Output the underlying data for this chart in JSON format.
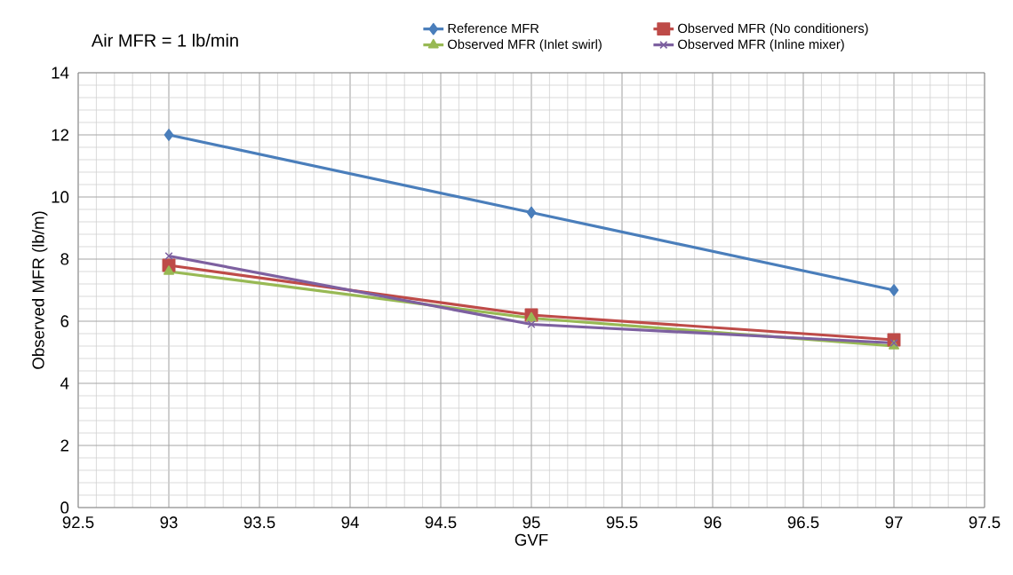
{
  "chart_data": {
    "type": "line",
    "title": "Air MFR = 1 lb/min",
    "xlabel": "GVF",
    "ylabel": "Observed MFR (lb/m)",
    "x": [
      93,
      95,
      97
    ],
    "series": [
      {
        "name": "Reference MFR",
        "color": "#4a7ebb",
        "marker": "diamond",
        "values": [
          12,
          9.5,
          7
        ]
      },
      {
        "name": "Observed MFR (No conditioners)",
        "color": "#be4b48",
        "marker": "square",
        "values": [
          7.8,
          6.2,
          5.4
        ]
      },
      {
        "name": "Observed MFR (Inlet swirl)",
        "color": "#98b954",
        "marker": "triangle",
        "values": [
          7.6,
          6.1,
          5.2
        ]
      },
      {
        "name": "Observed MFR (Inline mixer)",
        "color": "#7d60a0",
        "marker": "cross",
        "values": [
          8.1,
          5.9,
          5.3
        ]
      }
    ],
    "xlim": [
      92.5,
      97.5
    ],
    "xticks": [
      92.5,
      93,
      93.5,
      94,
      94.5,
      95,
      95.5,
      96,
      96.5,
      97,
      97.5
    ],
    "ylim": [
      0,
      14
    ],
    "yticks": [
      0,
      2,
      4,
      6,
      8,
      10,
      12,
      14
    ],
    "grid": true,
    "legend": "top",
    "line_style": "solid"
  }
}
